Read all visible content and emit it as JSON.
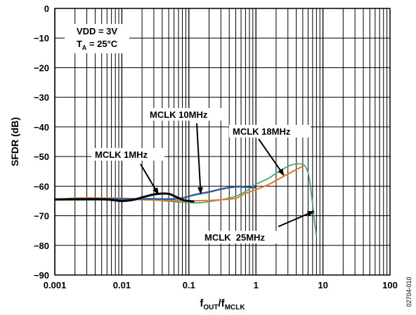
{
  "chart_data": {
    "type": "line",
    "x_scale": "log",
    "xlim": [
      0.001,
      100
    ],
    "ylim": [
      -90,
      0
    ],
    "x_ticks": [
      "0.001",
      "0.01",
      "0.1",
      "1",
      "10",
      "100"
    ],
    "y_ticks": [
      "0",
      "−10",
      "−20",
      "−30",
      "−40",
      "−50",
      "−60",
      "−70",
      "−80",
      "−90"
    ],
    "ylabel": "SFDR (dB)",
    "xlabel": {
      "f": "f",
      "out": "OUT",
      "slash": "/f",
      "mclk": "MCLK"
    },
    "grid": true,
    "conditions": {
      "vdd": "VDD = 3V",
      "ta_t": "T",
      "ta_sub": "A",
      "ta_rest": " = 25°C"
    },
    "figure_id": "02704-010",
    "series": [
      {
        "name": "MCLK 1MHz",
        "color": "#000000",
        "x": [
          0.001,
          0.003,
          0.006,
          0.01,
          0.015,
          0.02,
          0.03,
          0.04,
          0.05,
          0.06,
          0.07,
          0.08,
          0.09,
          0.1,
          0.12
        ],
        "y": [
          -64.5,
          -64.4,
          -64.5,
          -65,
          -64.6,
          -63.8,
          -62.8,
          -62.5,
          -62.6,
          -63.3,
          -64,
          -64.6,
          -64.9,
          -65,
          -65.2
        ]
      },
      {
        "name": "MCLK 10MHz",
        "color": "#2e5d9a",
        "x": [
          0.001,
          0.003,
          0.01,
          0.03,
          0.05,
          0.07,
          0.09,
          0.1,
          0.15,
          0.2,
          0.3,
          0.5,
          0.7,
          1.0
        ],
        "y": [
          -64.4,
          -64.3,
          -64.3,
          -64.3,
          -64.4,
          -64.2,
          -63.8,
          -63.4,
          -62.5,
          -62,
          -61,
          -60.2,
          -60.3,
          -60.5
        ]
      },
      {
        "name": "MCLK 18MHz",
        "color": "#e87722",
        "x": [
          0.001,
          0.002,
          0.005,
          0.01,
          0.02,
          0.05,
          0.1,
          0.2,
          0.3,
          0.5,
          0.7,
          1,
          1.5,
          2,
          3,
          4,
          5
        ],
        "y": [
          -64.5,
          -64.1,
          -64,
          -64.1,
          -64.5,
          -64.8,
          -65,
          -64.8,
          -64.6,
          -64.1,
          -62.5,
          -61.2,
          -59.6,
          -58.1,
          -55.9,
          -54.4,
          -53.3
        ]
      },
      {
        "name": "MCLK  25MHz",
        "color": "#4aa57a",
        "x": [
          0.001,
          0.003,
          0.01,
          0.03,
          0.05,
          0.1,
          0.15,
          0.2,
          0.3,
          0.5,
          0.7,
          1,
          1.5,
          2,
          3,
          4,
          5,
          5.5,
          6,
          6.5,
          7,
          7.5,
          8
        ],
        "y": [
          -64.6,
          -64.7,
          -64.5,
          -64.7,
          -65.1,
          -65.6,
          -65.6,
          -65.2,
          -64.6,
          -63.4,
          -61.8,
          -59.4,
          -57.5,
          -55.7,
          -53.3,
          -52.5,
          -52.6,
          -53.5,
          -55.5,
          -60,
          -66,
          -72,
          -77
        ]
      }
    ],
    "annotations": [
      {
        "label": "MCLK 1MHz"
      },
      {
        "label": "MCLK 10MHz"
      },
      {
        "label": "MCLK 18MHz"
      },
      {
        "label": "MCLK  25MHz"
      }
    ]
  }
}
